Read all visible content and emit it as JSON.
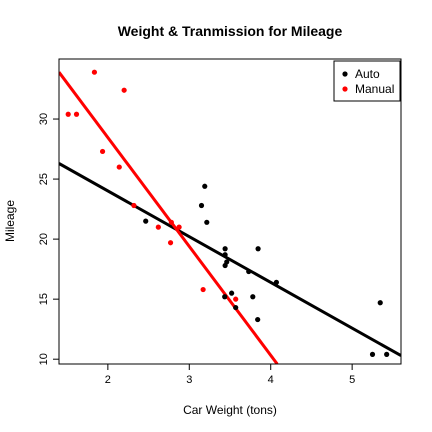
{
  "chart_data": {
    "type": "scatter",
    "title": "Weight & Tranmission for Mileage",
    "xlabel": "Car Weight (tons)",
    "ylabel": "Mileage",
    "xlim": [
      1.4,
      5.6
    ],
    "ylim": [
      9.6,
      35.0
    ],
    "xticks": [
      2,
      3,
      4,
      5
    ],
    "yticks": [
      10,
      15,
      20,
      25,
      30
    ],
    "grid": false,
    "legend_position": "top-right",
    "series": [
      {
        "name": "Auto",
        "color": "#000000",
        "points": [
          [
            2.465,
            21.5
          ],
          [
            3.215,
            21.4
          ],
          [
            3.44,
            18.7
          ],
          [
            3.46,
            18.1
          ],
          [
            3.57,
            14.3
          ],
          [
            3.19,
            24.4
          ],
          [
            3.15,
            22.8
          ],
          [
            3.44,
            19.2
          ],
          [
            3.44,
            17.8
          ],
          [
            4.07,
            16.4
          ],
          [
            3.73,
            17.3
          ],
          [
            3.78,
            15.2
          ],
          [
            5.25,
            10.4
          ],
          [
            5.424,
            10.4
          ],
          [
            5.345,
            14.7
          ],
          [
            3.52,
            15.5
          ],
          [
            3.435,
            15.2
          ],
          [
            3.84,
            13.3
          ],
          [
            3.845,
            19.2
          ]
        ],
        "fit": {
          "x1": 1.4,
          "y1": 26.3,
          "x2": 5.6,
          "y2": 10.3
        }
      },
      {
        "name": "Manual",
        "color": "#ff0000",
        "points": [
          [
            2.62,
            21.0
          ],
          [
            2.875,
            21.0
          ],
          [
            2.32,
            22.8
          ],
          [
            2.2,
            32.4
          ],
          [
            1.615,
            30.4
          ],
          [
            1.835,
            33.9
          ],
          [
            1.935,
            27.3
          ],
          [
            2.14,
            26.0
          ],
          [
            1.513,
            30.4
          ],
          [
            3.17,
            15.8
          ],
          [
            2.77,
            19.7
          ],
          [
            3.57,
            15.0
          ],
          [
            2.78,
            21.4
          ]
        ],
        "fit": {
          "x1": 1.4,
          "y1": 33.9,
          "x2": 4.08,
          "y2": 9.6
        }
      }
    ]
  }
}
